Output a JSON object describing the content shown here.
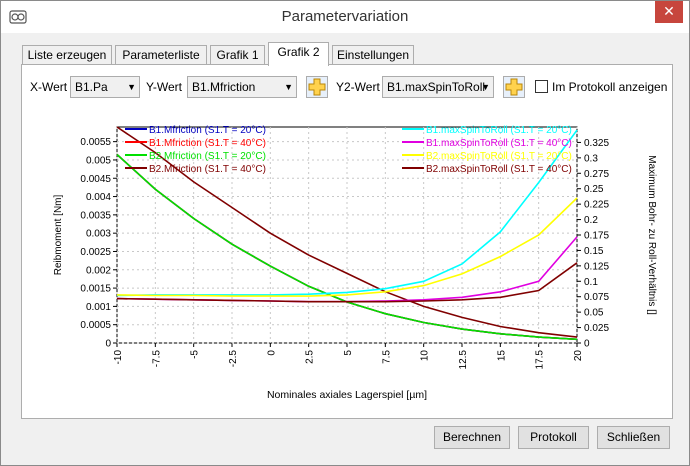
{
  "window": {
    "title": "Parametervariation",
    "close_glyph": "✕",
    "icon": "app-logo-icon"
  },
  "tabs": [
    {
      "label": "Liste erzeugen",
      "active": false
    },
    {
      "label": "Parameterliste",
      "active": false
    },
    {
      "label": "Grafik 1",
      "active": false
    },
    {
      "label": "Grafik 2",
      "active": true
    },
    {
      "label": "Einstellungen",
      "active": false
    }
  ],
  "controls": {
    "x_label": "X-Wert",
    "x_value": "B1.Pa",
    "y_label": "Y-Wert",
    "y_value": "B1.Mfriction",
    "y2_label": "Y2-Wert",
    "y2_value": "B1.maxSpinToRoll",
    "protocol_checkbox_label": "Im Protokoll anzeigen",
    "protocol_checked": false
  },
  "buttons": {
    "calc": "Berechnen",
    "protocol": "Protokoll",
    "close": "Schließen"
  },
  "chart_data": {
    "type": "line",
    "xlabel": "Nominales axiales Lagerspiel [µm]",
    "ylabel": "Reibmoment [Nm]",
    "y2label": "Maximum Bohr- zu Roll-Verhältnis []",
    "xlim": [
      -10,
      20
    ],
    "ylim": [
      0,
      0.0059
    ],
    "y2lim": [
      0,
      0.35
    ],
    "x_ticks": [
      "-10",
      "-7.5",
      "-5",
      "-2.5",
      "0",
      "2.5",
      "5",
      "7.5",
      "10",
      "12.5",
      "15",
      "17.5",
      "20"
    ],
    "y_ticks": [
      "0",
      "0.0005",
      "0.001",
      "0.0015",
      "0.002",
      "0.0025",
      "0.003",
      "0.0035",
      "0.004",
      "0.0045",
      "0.005",
      "0.0055"
    ],
    "y2_ticks": [
      "0",
      "0.025",
      "0.05",
      "0.075",
      "0.1",
      "0.125",
      "0.15",
      "0.175",
      "0.2",
      "0.225",
      "0.25",
      "0.275",
      "0.3",
      "0.325"
    ],
    "x": [
      -10,
      -7.5,
      -5,
      -2.5,
      0,
      2.5,
      5,
      7.5,
      10,
      12.5,
      15,
      17.5,
      20
    ],
    "series": [
      {
        "name": "B1.Mfriction (S1.T = 20°C)",
        "axis": "y",
        "color": "#0000c0",
        "values": [
          0.00515,
          0.0042,
          0.0034,
          0.0027,
          0.0021,
          0.00155,
          0.00112,
          0.0008,
          0.00056,
          0.00038,
          0.00025,
          0.00016,
          0.0001
        ]
      },
      {
        "name": "B1.Mfriction (S1.T = 40°C)",
        "axis": "y",
        "color": "#ff0000",
        "values": [
          0.00515,
          0.0042,
          0.0034,
          0.0027,
          0.0021,
          0.00155,
          0.00112,
          0.0008,
          0.00056,
          0.00038,
          0.00025,
          0.00016,
          0.0001
        ]
      },
      {
        "name": "B2.Mfriction (S1.T = 20°C)",
        "axis": "y",
        "color": "#00e000",
        "values": [
          0.00515,
          0.0042,
          0.0034,
          0.0027,
          0.0021,
          0.00155,
          0.00112,
          0.0008,
          0.00056,
          0.00038,
          0.00025,
          0.00016,
          0.0001
        ]
      },
      {
        "name": "B2.Mfriction (S1.T = 40°C)",
        "axis": "y",
        "color": "#800000",
        "values": [
          0.0059,
          0.0052,
          0.0044,
          0.0037,
          0.003,
          0.0024,
          0.0019,
          0.0014,
          0.001,
          0.0007,
          0.00045,
          0.00028,
          0.00016
        ]
      },
      {
        "name": "B1.maxSpinToRoll (S1.T = 20°C)",
        "axis": "y2",
        "color": "#00ffff",
        "values": [
          0.077,
          0.078,
          0.078,
          0.078,
          0.078,
          0.079,
          0.082,
          0.088,
          0.1,
          0.128,
          0.18,
          0.26,
          0.345
        ]
      },
      {
        "name": "B1.maxSpinToRoll (S1.T = 40°C)",
        "axis": "y2",
        "color": "#e000e0",
        "values": [
          0.072,
          0.071,
          0.07,
          0.069,
          0.068,
          0.067,
          0.067,
          0.068,
          0.07,
          0.074,
          0.083,
          0.1,
          0.172
        ]
      },
      {
        "name": "B2.maxSpinToRoll (S1.T = 20°C)",
        "axis": "y2",
        "color": "#ffff00",
        "values": [
          0.078,
          0.077,
          0.077,
          0.076,
          0.076,
          0.076,
          0.078,
          0.083,
          0.093,
          0.112,
          0.14,
          0.175,
          0.235
        ]
      },
      {
        "name": "B2.maxSpinToRoll (S1.T = 40°C)",
        "axis": "y2",
        "color": "#800000",
        "values": [
          0.072,
          0.071,
          0.07,
          0.069,
          0.068,
          0.067,
          0.067,
          0.067,
          0.068,
          0.07,
          0.074,
          0.085,
          0.13
        ]
      }
    ],
    "legend_placement": [
      "top-left",
      "top-right"
    ],
    "grid": true
  }
}
